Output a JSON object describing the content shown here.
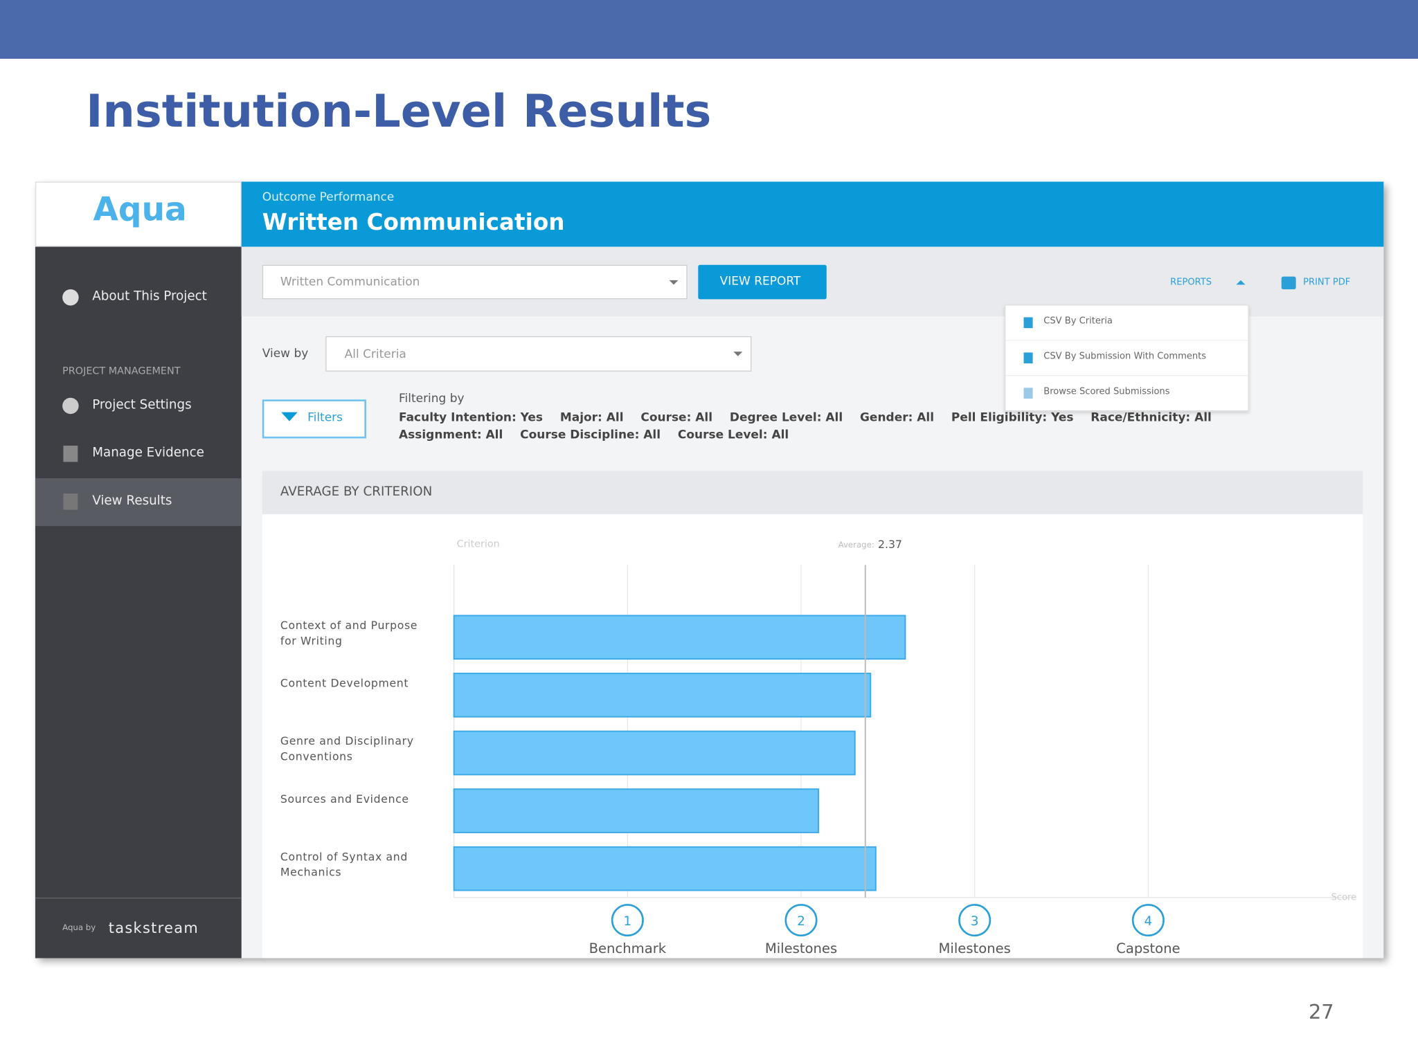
{
  "slide": {
    "title": "Institution-Level Results",
    "page_number": 27
  },
  "app": {
    "logo": "Aqua",
    "sidebar": {
      "items": [
        "About This Project",
        "Project Settings",
        "Manage Evidence",
        "View Results"
      ],
      "section": "PROJECT MANAGEMENT",
      "footer_prefix": "Aqua by",
      "footer_brand": "taskstream"
    },
    "header": {
      "kicker": "Outcome Performance",
      "title": "Written Communication"
    },
    "toolbar": {
      "outcome_select": "Written Communication",
      "view_report": "VIEW REPORT",
      "reports": "REPORTS",
      "print_pdf": "PRINT PDF"
    },
    "reports_menu": [
      "CSV By Criteria",
      "CSV By Submission With Comments",
      "Browse Scored Submissions"
    ],
    "view_by_label": "View by",
    "view_by_select": "All Criteria",
    "filters_button": "Filters",
    "filtering_by_label": "Filtering by",
    "filters": [
      "Faculty Intention: Yes",
      "Major: All",
      "Course: All",
      "Degree Level: All",
      "Gender: All",
      "Pell Eligibility: Yes",
      "Race/Ethnicity: All",
      "Assignment: All",
      "Course Discipline: All",
      "Course Level: All"
    ]
  },
  "chart_data": {
    "type": "hbar",
    "title": "AVERAGE BY CRITERION",
    "category_header": "Criterion",
    "x_label": "Score",
    "average_label": "Average:",
    "average": 2.37,
    "categories": [
      "Context of and Purpose for Writing",
      "Content Development",
      "Genre and Disciplinary Conventions",
      "Sources and Evidence",
      "Control of Syntax and Mechanics"
    ],
    "values": [
      2.6,
      2.4,
      2.31,
      2.1,
      2.43
    ],
    "color": "#6ec6f9",
    "xlim": [
      0,
      5.2
    ],
    "xticks": [
      1,
      2,
      3,
      4
    ],
    "tick_names": [
      "Benchmark",
      "Milestones",
      "Milestones",
      "Capstone"
    ],
    "grid": true
  }
}
